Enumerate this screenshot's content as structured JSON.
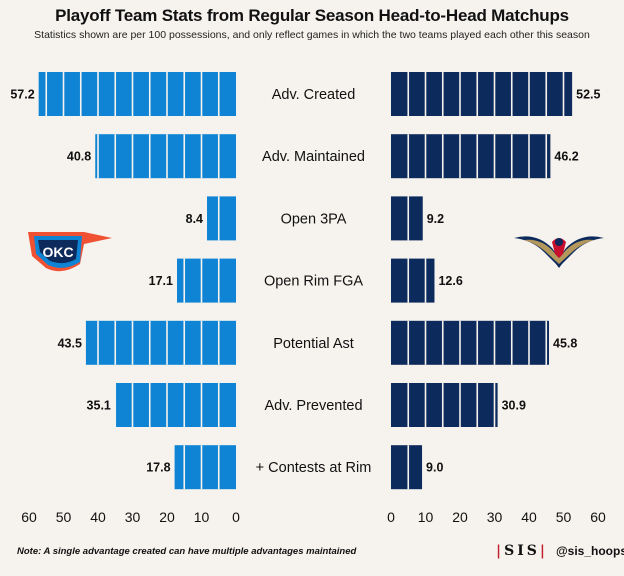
{
  "title": "Playoff Team Stats from Regular Season Head-to-Head Matchups",
  "subtitle": "Statistics shown are per 100 possessions, and only reflect games in which the two teams played each other this season",
  "note": "Note: A single advantage created can have multiple advantages maintained",
  "brand": {
    "logo_text": "SIS",
    "handle": "@sis_hoops"
  },
  "teams": [
    {
      "name": "OKC",
      "logo_icon": "okc-thunder-logo-icon",
      "logo_text": "OKC",
      "color": "#0f84d4"
    },
    {
      "name": "NOP",
      "logo_icon": "pelicans-logo-icon",
      "color": "#0c2a5c"
    }
  ],
  "colors": {
    "left_bar": "#0f84d4",
    "right_bar": "#0c2a5c",
    "background": "#f6f3ee"
  },
  "chart_data": {
    "type": "bar",
    "orientation": "horizontal-butterfly",
    "categories": [
      "Adv. Created",
      "Adv. Maintained",
      "Open 3PA",
      "Open Rim FGA",
      "Potential Ast",
      "Adv. Prevented",
      "+ Contests at Rim"
    ],
    "series": [
      {
        "values": [
          57.2,
          40.8,
          8.4,
          17.1,
          43.5,
          35.1,
          17.8
        ],
        "labels": [
          "57.2",
          "40.8",
          "8.4",
          "17.1",
          "43.5",
          "35.1",
          "17.8"
        ],
        "color": "#0f84d4"
      },
      {
        "values": [
          52.5,
          46.2,
          9.2,
          12.6,
          45.8,
          30.9,
          9.0
        ],
        "labels": [
          "52.5",
          "46.2",
          "9.2",
          "12.6",
          "45.8",
          "30.9",
          "9.0"
        ],
        "color": "#0c2a5c"
      }
    ],
    "xlim": [
      0,
      60
    ],
    "ticks": [
      0,
      10,
      20,
      30,
      40,
      50,
      60
    ],
    "tick_labels": [
      "0",
      "10",
      "20",
      "30",
      "40",
      "50",
      "60"
    ],
    "segment_size": 5,
    "grid": false,
    "legend": "none (team logos)"
  }
}
